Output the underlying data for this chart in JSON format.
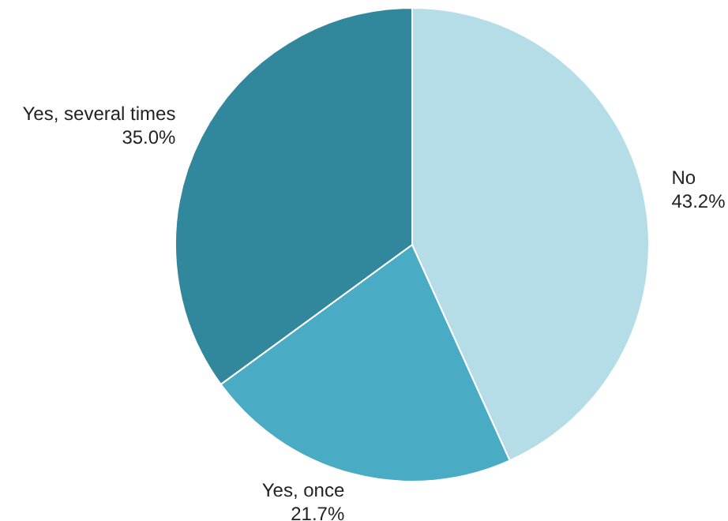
{
  "chart_data": {
    "type": "pie",
    "categories": [
      "No",
      "Yes, once",
      "Yes, several times"
    ],
    "values": [
      43.2,
      21.7,
      35.0
    ],
    "value_labels": [
      "43.2%",
      "21.7%",
      "35.0%"
    ],
    "colors": [
      "#b5dde7",
      "#4aabc4",
      "#31879c"
    ]
  }
}
